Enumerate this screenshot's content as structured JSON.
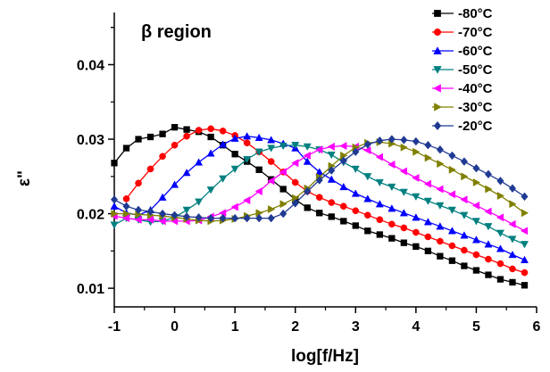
{
  "chart_data": {
    "type": "line",
    "region_label": "β region",
    "xlabel": "log[f/Hz]",
    "ylabel": "ε\"",
    "xlim": [
      -1,
      6
    ],
    "ylim": [
      0.0075,
      0.047
    ],
    "xticks": [
      "-1",
      "0",
      "1",
      "2",
      "3",
      "4",
      "5",
      "6"
    ],
    "yticks": [
      "0.01",
      "0.02",
      "0.03",
      "0.04"
    ],
    "ytick_values": [
      0.01,
      0.02,
      0.03,
      0.04
    ],
    "grid": false,
    "legend_position": "top-right",
    "series": [
      {
        "name": "-80°C",
        "color": "#000000",
        "marker": "square",
        "x": [
          -1,
          -0.8,
          -0.6,
          -0.4,
          -0.2,
          0,
          0.2,
          0.4,
          0.6,
          0.8,
          1,
          1.2,
          1.4,
          1.6,
          1.8,
          2,
          2.2,
          2.4,
          2.6,
          2.8,
          3,
          3.2,
          3.4,
          3.6,
          3.8,
          4,
          4.2,
          4.4,
          4.6,
          4.8,
          5,
          5.2,
          5.4,
          5.6,
          5.8
        ],
        "y": [
          0.0268,
          0.0288,
          0.03,
          0.0303,
          0.0307,
          0.0316,
          0.0313,
          0.031,
          0.0303,
          0.0292,
          0.028,
          0.027,
          0.0259,
          0.0246,
          0.0233,
          0.0219,
          0.0208,
          0.0201,
          0.0196,
          0.019,
          0.0184,
          0.0177,
          0.0172,
          0.0167,
          0.0161,
          0.0156,
          0.015,
          0.0143,
          0.0137,
          0.013,
          0.0124,
          0.0118,
          0.0112,
          0.0108,
          0.0104
        ]
      },
      {
        "name": "-70°C",
        "color": "#ff0000",
        "marker": "circle",
        "x": [
          -0.8,
          -0.6,
          -0.4,
          -0.2,
          0,
          0.2,
          0.4,
          0.6,
          0.8,
          1,
          1.2,
          1.4,
          1.6,
          1.8,
          2,
          2.2,
          2.4,
          2.6,
          2.8,
          3,
          3.2,
          3.4,
          3.6,
          3.8,
          4,
          4.2,
          4.4,
          4.6,
          4.8,
          5,
          5.2,
          5.4,
          5.6,
          5.8
        ],
        "y": [
          0.022,
          0.0241,
          0.026,
          0.0277,
          0.0292,
          0.0304,
          0.0312,
          0.0314,
          0.0311,
          0.0305,
          0.0295,
          0.0283,
          0.027,
          0.0256,
          0.0242,
          0.023,
          0.0222,
          0.0215,
          0.021,
          0.0204,
          0.0198,
          0.0192,
          0.0186,
          0.0181,
          0.0175,
          0.0169,
          0.0163,
          0.0157,
          0.0151,
          0.0145,
          0.0139,
          0.0133,
          0.0126,
          0.0121
        ]
      },
      {
        "name": "-60°C",
        "color": "#0000ff",
        "marker": "triangle-up",
        "x": [
          -1,
          -0.8,
          -0.6,
          -0.4,
          -0.2,
          0,
          0.2,
          0.4,
          0.6,
          0.8,
          1,
          1.2,
          1.4,
          1.6,
          1.8,
          2,
          2.2,
          2.4,
          2.6,
          2.8,
          3,
          3.2,
          3.4,
          3.6,
          3.8,
          4,
          4.2,
          4.4,
          4.6,
          4.8,
          5,
          5.2,
          5.4,
          5.6,
          5.8
        ],
        "y": [
          0.021,
          0.0201,
          0.0198,
          0.0205,
          0.0222,
          0.0239,
          0.0255,
          0.0269,
          0.0281,
          0.0293,
          0.0301,
          0.0304,
          0.0302,
          0.0299,
          0.0294,
          0.0288,
          0.027,
          0.0256,
          0.0246,
          0.0236,
          0.0227,
          0.022,
          0.0213,
          0.0207,
          0.0201,
          0.0195,
          0.0189,
          0.0183,
          0.0177,
          0.0171,
          0.0165,
          0.0159,
          0.0153,
          0.0145,
          0.0138
        ]
      },
      {
        "name": "-50°C",
        "color": "#008080",
        "marker": "triangle-down",
        "x": [
          -1,
          -0.8,
          -0.6,
          -0.4,
          -0.2,
          0,
          0.2,
          0.4,
          0.6,
          0.8,
          1,
          1.2,
          1.4,
          1.6,
          1.8,
          2,
          2.2,
          2.4,
          2.6,
          2.8,
          3,
          3.2,
          3.4,
          3.6,
          3.8,
          4,
          4.2,
          4.4,
          4.6,
          4.8,
          5,
          5.2,
          5.4,
          5.6,
          5.8
        ],
        "y": [
          0.0185,
          0.0194,
          0.0192,
          0.0189,
          0.019,
          0.0195,
          0.0205,
          0.0216,
          0.0232,
          0.0247,
          0.026,
          0.0273,
          0.0283,
          0.0288,
          0.0291,
          0.0292,
          0.029,
          0.0286,
          0.0279,
          0.0269,
          0.026,
          0.025,
          0.0242,
          0.0236,
          0.0229,
          0.0223,
          0.0217,
          0.0211,
          0.0205,
          0.0198,
          0.019,
          0.0183,
          0.0174,
          0.0166,
          0.0159
        ]
      },
      {
        "name": "-40°C",
        "color": "#ff00ff",
        "marker": "triangle-left",
        "x": [
          -1,
          -0.8,
          -0.6,
          -0.4,
          -0.2,
          0,
          0.2,
          0.4,
          0.6,
          0.8,
          1,
          1.2,
          1.4,
          1.6,
          1.8,
          2,
          2.2,
          2.4,
          2.6,
          2.8,
          3,
          3.2,
          3.4,
          3.6,
          3.8,
          4,
          4.2,
          4.4,
          4.6,
          4.8,
          5,
          5.2,
          5.4,
          5.6,
          5.8
        ],
        "y": [
          0.0197,
          0.0194,
          0.0192,
          0.0192,
          0.019,
          0.019,
          0.019,
          0.0191,
          0.0196,
          0.0201,
          0.0209,
          0.0218,
          0.023,
          0.0244,
          0.0256,
          0.0268,
          0.0278,
          0.0286,
          0.029,
          0.0291,
          0.029,
          0.0285,
          0.0276,
          0.0266,
          0.0257,
          0.0248,
          0.024,
          0.0233,
          0.0226,
          0.0219,
          0.0211,
          0.0203,
          0.0195,
          0.0186,
          0.0177
        ]
      },
      {
        "name": "-30°C",
        "color": "#808000",
        "marker": "triangle-right",
        "x": [
          -1,
          -0.8,
          -0.6,
          -0.4,
          -0.2,
          0,
          0.2,
          0.4,
          0.6,
          0.8,
          1,
          1.2,
          1.4,
          1.6,
          1.8,
          2,
          2.2,
          2.4,
          2.6,
          2.8,
          3,
          3.2,
          3.4,
          3.6,
          3.8,
          4,
          4.2,
          4.4,
          4.6,
          4.8,
          5,
          5.2,
          5.4,
          5.6,
          5.8
        ],
        "y": [
          0.02,
          0.02,
          0.0199,
          0.0198,
          0.0197,
          0.0195,
          0.0193,
          0.0191,
          0.019,
          0.0191,
          0.0193,
          0.0197,
          0.0201,
          0.0206,
          0.0213,
          0.0221,
          0.0234,
          0.0249,
          0.0264,
          0.0278,
          0.0289,
          0.0295,
          0.0296,
          0.0294,
          0.0289,
          0.0283,
          0.0275,
          0.0267,
          0.0259,
          0.025,
          0.0242,
          0.0233,
          0.0224,
          0.0213,
          0.0201
        ]
      },
      {
        "name": "-20°C",
        "color": "#1f3a93",
        "marker": "diamond",
        "x": [
          -1,
          -0.8,
          -0.6,
          -0.4,
          -0.2,
          0,
          0.2,
          0.4,
          0.6,
          0.8,
          1,
          1.2,
          1.4,
          1.6,
          1.8,
          2,
          2.2,
          2.4,
          2.6,
          2.8,
          3,
          3.2,
          3.4,
          3.6,
          3.8,
          4,
          4.2,
          4.4,
          4.6,
          4.8,
          5,
          5.2,
          5.4,
          5.6,
          5.8
        ],
        "y": [
          0.0219,
          0.021,
          0.0205,
          0.0203,
          0.02,
          0.0198,
          0.0196,
          0.0195,
          0.0194,
          0.0194,
          0.0194,
          0.0194,
          0.0194,
          0.0194,
          0.02,
          0.0214,
          0.023,
          0.0245,
          0.0258,
          0.0271,
          0.0283,
          0.0293,
          0.0298,
          0.03,
          0.0299,
          0.0297,
          0.0292,
          0.0286,
          0.0278,
          0.027,
          0.0261,
          0.0253,
          0.0244,
          0.0234,
          0.0223
        ]
      }
    ]
  }
}
